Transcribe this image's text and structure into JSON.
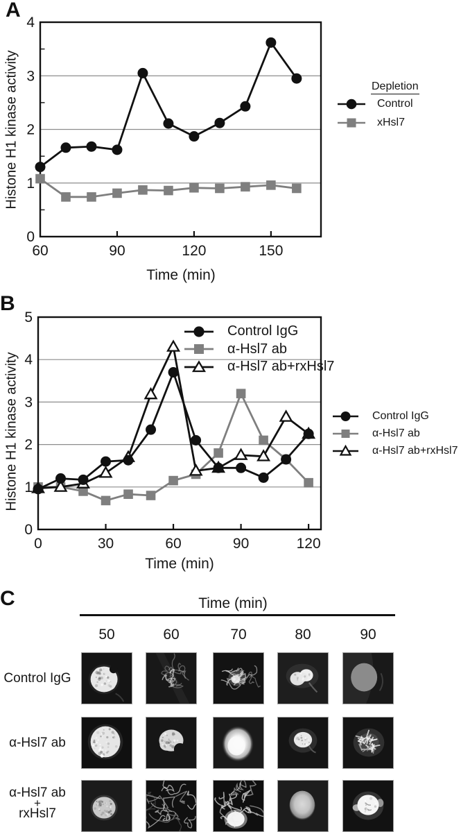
{
  "colors": {
    "series_black": "#111111",
    "series_gray": "#7f7f7f",
    "grid": "#8c8c8c",
    "text": "#161616",
    "micrograph_bg": "#141414"
  },
  "chart_data": [
    {
      "id": "A",
      "type": "line",
      "title": "",
      "xlabel": "Time (min)",
      "ylabel": "Histone H1 kinase activity",
      "x": [
        60,
        70,
        80,
        90,
        100,
        110,
        120,
        130,
        140,
        150,
        160
      ],
      "series": [
        {
          "name": "Control",
          "marker": "circle",
          "color": "#111111",
          "values": [
            1.3,
            1.66,
            1.68,
            1.62,
            3.05,
            2.11,
            1.87,
            2.12,
            2.43,
            3.62,
            2.95
          ]
        },
        {
          "name": "xHsl7",
          "marker": "square",
          "color": "#7f7f7f",
          "values": [
            1.08,
            0.74,
            0.74,
            0.81,
            0.87,
            0.86,
            0.91,
            0.9,
            0.93,
            0.96,
            0.9
          ]
        }
      ],
      "xlim": [
        60,
        169.5
      ],
      "ylim": [
        0,
        4
      ],
      "xticks": [
        60,
        90,
        120,
        150
      ],
      "yticks": [
        0,
        1,
        2,
        3,
        4
      ],
      "xtick_marks": [
        90,
        120,
        150
      ],
      "grid_y": [
        1,
        2,
        3
      ],
      "minor_y": [
        0.5,
        1.5,
        2.5,
        3.5
      ],
      "legend_position": "outside-right"
    },
    {
      "id": "B",
      "type": "line",
      "title": "",
      "xlabel": "Time (min)",
      "ylabel": "Histone H1 kinase activity",
      "x": [
        0,
        10,
        20,
        30,
        40,
        50,
        60,
        70,
        80,
        90,
        100,
        110,
        120
      ],
      "series": [
        {
          "name": "Control IgG",
          "marker": "circle",
          "color": "#111111",
          "values": [
            0.95,
            1.2,
            1.17,
            1.6,
            1.63,
            2.35,
            3.7,
            2.1,
            1.45,
            1.45,
            1.22,
            1.65,
            2.25
          ]
        },
        {
          "name": "α-Hsl7 ab",
          "marker": "square",
          "color": "#7f7f7f",
          "values": [
            1.0,
            1.0,
            0.9,
            0.68,
            0.83,
            0.8,
            1.15,
            1.3,
            1.8,
            3.2,
            2.1,
            1.65,
            1.1
          ]
        },
        {
          "name": "α-Hsl7 ab+rxHsl7",
          "marker": "triangle-open",
          "color": "#111111",
          "values": [
            0.97,
            1.0,
            1.08,
            1.33,
            1.7,
            3.18,
            4.3,
            1.38,
            1.45,
            1.75,
            1.72,
            2.65,
            2.25
          ]
        }
      ],
      "xlim": [
        0,
        125.5
      ],
      "ylim": [
        0,
        5
      ],
      "xticks": [
        0,
        30,
        60,
        90,
        120
      ],
      "yticks": [
        0,
        1,
        2,
        3,
        4,
        5
      ],
      "xtick_marks": [
        30,
        60,
        90,
        120
      ],
      "grid_y": [
        1,
        2,
        3,
        4
      ],
      "minor_y": [],
      "legend_position": "inside-top and outside-right"
    }
  ],
  "panels": {
    "a": {
      "letter": "A",
      "legend_title": "Depletion"
    },
    "b": {
      "letter": "B"
    },
    "c": {
      "letter": "C",
      "title": "Time (min)",
      "columns": [
        "50",
        "60",
        "70",
        "80",
        "90"
      ],
      "rows": [
        {
          "label_lines": [
            "Control IgG"
          ],
          "cells": [
            {
              "time": "50",
              "appearance": "bright mottled round nucleus"
            },
            {
              "time": "60",
              "appearance": "faint dispersed condensed chromosomes"
            },
            {
              "time": "70",
              "appearance": "tangled condensed chromosome cluster"
            },
            {
              "time": "80",
              "appearance": "two bright reforming lobes"
            },
            {
              "time": "90",
              "appearance": "uniform gray round nucleus"
            }
          ]
        },
        {
          "label_lines": [
            "α-Hsl7 ab"
          ],
          "cells": [
            {
              "time": "50",
              "appearance": "large bright mottled nucleus"
            },
            {
              "time": "60",
              "appearance": "bean-shaped mottled nucleus"
            },
            {
              "time": "70",
              "appearance": "large glowing oval nucleus"
            },
            {
              "time": "80",
              "appearance": "small bright mottled nucleus"
            },
            {
              "time": "90",
              "appearance": "cluster of condensed chromosome fragments"
            }
          ]
        },
        {
          "label_lines": [
            "α-Hsl7 ab",
            "+",
            "rxHsl7"
          ],
          "cells": [
            {
              "time": "50",
              "appearance": "dim mottled round nucleus"
            },
            {
              "time": "60",
              "appearance": "thread-like chromosomes spread widely"
            },
            {
              "time": "70",
              "appearance": "dense chromosome threads with bright mass"
            },
            {
              "time": "80",
              "appearance": "smooth gray oval nucleus"
            },
            {
              "time": "90",
              "appearance": "bright round chromatin mass"
            }
          ]
        }
      ]
    }
  }
}
